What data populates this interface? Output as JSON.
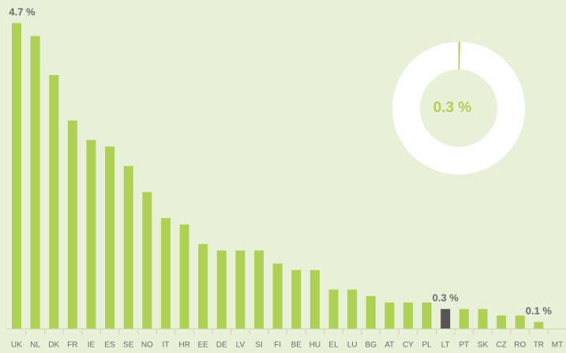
{
  "chart_data": {
    "type": "bar",
    "categories": [
      "UK",
      "NL",
      "DK",
      "FR",
      "IE",
      "ES",
      "SE",
      "NO",
      "IT",
      "HR",
      "EE",
      "DE",
      "LV",
      "SI",
      "FI",
      "BE",
      "HU",
      "EL",
      "LU",
      "BG",
      "AT",
      "CY",
      "PL",
      "LT",
      "PT",
      "SK",
      "CZ",
      "RO",
      "TR",
      "MT"
    ],
    "values": [
      4.7,
      4.5,
      3.9,
      3.2,
      2.9,
      2.8,
      2.5,
      2.1,
      1.7,
      1.6,
      1.3,
      1.2,
      1.2,
      1.2,
      1.0,
      0.9,
      0.9,
      0.6,
      0.6,
      0.5,
      0.4,
      0.4,
      0.4,
      0.3,
      0.3,
      0.3,
      0.2,
      0.2,
      0.1,
      0
    ],
    "value_labels": [
      "4.7 %",
      null,
      null,
      null,
      null,
      null,
      null,
      null,
      null,
      null,
      null,
      null,
      null,
      null,
      null,
      null,
      null,
      null,
      null,
      null,
      null,
      null,
      null,
      "0.3 %",
      null,
      null,
      null,
      null,
      "0.1 %",
      null
    ],
    "color": "#aed155",
    "highlight": "LT",
    "highlight_color": "#555555",
    "ylim": [
      0,
      5
    ],
    "donut": {
      "value": 0.3,
      "max": 100,
      "label": "0.3 %",
      "color": "#aed155",
      "track_color": "#ffffff"
    }
  }
}
